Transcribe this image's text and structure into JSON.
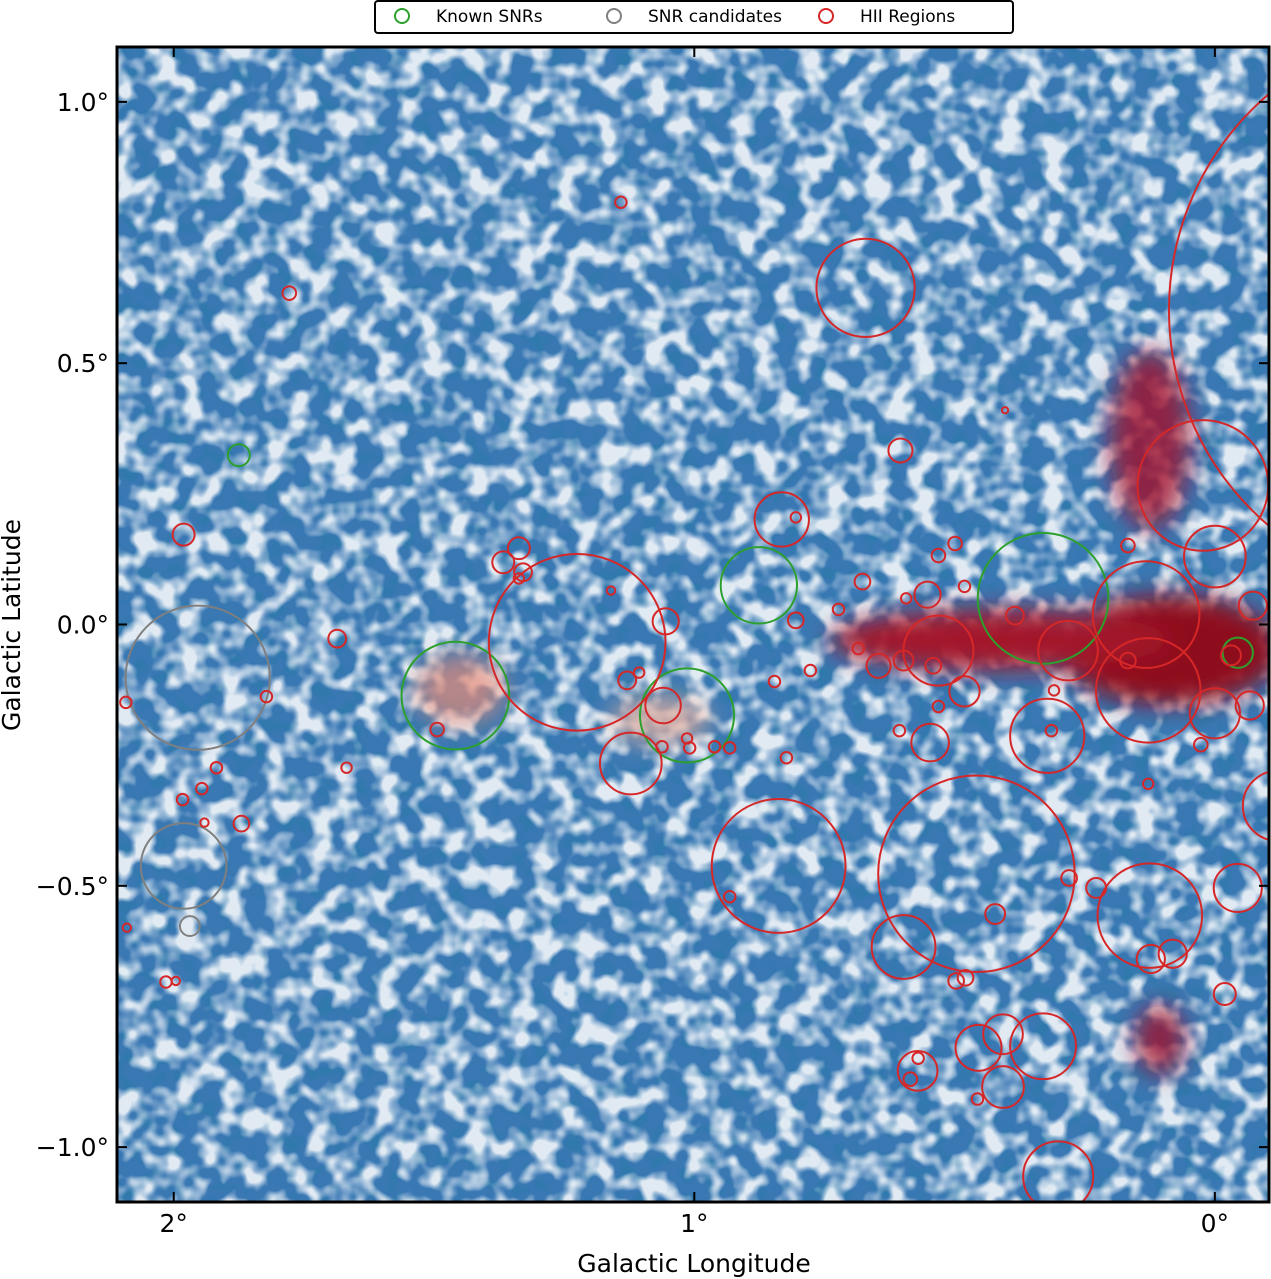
{
  "chart_data": {
    "type": "scatter",
    "xlabel": "Galactic Longitude",
    "ylabel": "Galactic Latitude",
    "xlim": [
      2.109,
      -0.104
    ],
    "ylim": [
      -1.105,
      1.105
    ],
    "xticks": [
      {
        "value": 2,
        "label": "2°"
      },
      {
        "value": 1,
        "label": "1°"
      },
      {
        "value": 0,
        "label": "0°"
      }
    ],
    "yticks": [
      {
        "value": 1.0,
        "label": "1.0°"
      },
      {
        "value": 0.5,
        "label": "0.5°"
      },
      {
        "value": 0.0,
        "label": "0.0°"
      },
      {
        "value": -0.5,
        "label": "−0.5°"
      },
      {
        "value": -1.0,
        "label": "−1.0°"
      }
    ],
    "legend": "upper center",
    "series": [
      {
        "name": "Known SNRs",
        "color": "#2ca02c",
        "x": [
          1.875,
          1.459,
          0.876,
          1.014,
          0.33,
          -0.044
        ],
        "y": [
          0.324,
          -0.136,
          0.075,
          -0.174,
          0.05,
          -0.054
        ],
        "radius": [
          0.021,
          0.103,
          0.073,
          0.09,
          0.125,
          0.029
        ]
      },
      {
        "name": "SNR candidates",
        "color": "#7f7f7f",
        "x": [
          1.954,
          1.981,
          1.969
        ],
        "y": [
          -0.102,
          -0.462,
          -0.577
        ],
        "radius": [
          0.138,
          0.082,
          0.019
        ]
      },
      {
        "name": "HII Regions",
        "color": "#d62728",
        "x": [
          1.141,
          1.778,
          0.671,
          -0.456,
          0.023,
          0.604,
          0.403,
          0.832,
          0.805,
          1.981,
          1.337,
          1.367,
          1.329,
          1.337,
          1.225,
          1.16,
          1.055,
          1.686,
          1.822,
          2.092,
          1.494,
          1.129,
          1.106,
          1.06,
          1.122,
          1.062,
          1.009,
          1.014,
          0.961,
          0.932,
          0.823,
          0.846,
          0.805,
          0.677,
          0.723,
          0.777,
          0.838,
          0.932,
          0.458,
          0.598,
          0.547,
          0.606,
          0.531,
          0.481,
          0.531,
          0.552,
          0.481,
          0.531,
          0.499,
          0.593,
          0.384,
          0.282,
          0.132,
          0.128,
          0.0,
          -0.073,
          0.0,
          -0.067,
          0.027,
          0.167,
          0.322,
          0.314,
          0.309,
          0.125,
          0.081,
          0.123,
          -0.044,
          -0.019,
          0.33,
          0.407,
          0.454,
          0.407,
          0.456,
          0.571,
          0.585,
          0.57,
          0.301,
          0.422,
          0.28,
          0.228,
          0.497,
          0.479,
          2.015,
          1.996,
          1.87,
          1.983,
          1.946,
          1.918,
          1.941,
          2.09,
          1.668,
          0.646,
          0.598,
          0.685,
          0.541,
          -0.031,
          0.167,
          0.128,
          -0.121
        ],
        "y": [
          0.808,
          0.634,
          0.644,
          0.602,
          0.266,
          0.333,
          0.41,
          0.201,
          0.205,
          0.172,
          0.146,
          0.119,
          0.1,
          0.088,
          -0.034,
          0.065,
          0.006,
          -0.027,
          -0.138,
          -0.149,
          -0.201,
          -0.107,
          -0.092,
          -0.155,
          -0.266,
          -0.234,
          -0.236,
          -0.218,
          -0.234,
          -0.236,
          -0.255,
          -0.109,
          0.008,
          0.082,
          0.029,
          -0.088,
          -0.462,
          -0.521,
          -0.477,
          -0.617,
          -0.226,
          -0.203,
          -0.157,
          -0.128,
          -0.05,
          0.057,
          0.073,
          0.132,
          0.155,
          0.05,
          0.017,
          -0.05,
          0.019,
          -0.126,
          0.13,
          0.036,
          -0.17,
          -0.155,
          -0.23,
          0.151,
          -0.213,
          -0.203,
          -0.126,
          -0.557,
          -0.63,
          -0.64,
          -0.504,
          -0.707,
          -0.807,
          -0.784,
          -0.81,
          -0.885,
          -0.908,
          -0.854,
          -0.87,
          -0.83,
          -1.056,
          -0.554,
          -0.485,
          -0.504,
          -0.682,
          -0.676,
          -0.684,
          -0.682,
          -0.381,
          -0.335,
          -0.314,
          -0.274,
          -0.379,
          -0.58,
          -0.274,
          -0.079,
          -0.069,
          -0.046,
          -0.079,
          -0.059,
          -0.069,
          -0.305,
          -0.347
        ],
        "radius": [
          0.011,
          0.013,
          0.094,
          0.542,
          0.125,
          0.023,
          0.006,
          0.052,
          0.01,
          0.021,
          0.021,
          0.021,
          0.017,
          0.01,
          0.169,
          0.008,
          0.025,
          0.017,
          0.011,
          0.011,
          0.013,
          0.017,
          0.01,
          0.034,
          0.059,
          0.011,
          0.011,
          0.01,
          0.011,
          0.011,
          0.011,
          0.011,
          0.015,
          0.015,
          0.011,
          0.011,
          0.128,
          0.011,
          0.188,
          0.061,
          0.036,
          0.011,
          0.011,
          0.029,
          0.067,
          0.025,
          0.011,
          0.013,
          0.013,
          0.01,
          0.017,
          0.057,
          0.102,
          0.1,
          0.059,
          0.027,
          0.048,
          0.027,
          0.013,
          0.013,
          0.071,
          0.011,
          0.01,
          0.1,
          0.027,
          0.027,
          0.046,
          0.021,
          0.063,
          0.038,
          0.044,
          0.04,
          0.011,
          0.038,
          0.013,
          0.011,
          0.067,
          0.019,
          0.015,
          0.019,
          0.015,
          0.015,
          0.011,
          0.008,
          0.015,
          0.011,
          0.011,
          0.011,
          0.008,
          0.008,
          0.01,
          0.023,
          0.019,
          0.011,
          0.015,
          0.019,
          0.015,
          0.01,
          0.067
        ]
      }
    ]
  }
}
